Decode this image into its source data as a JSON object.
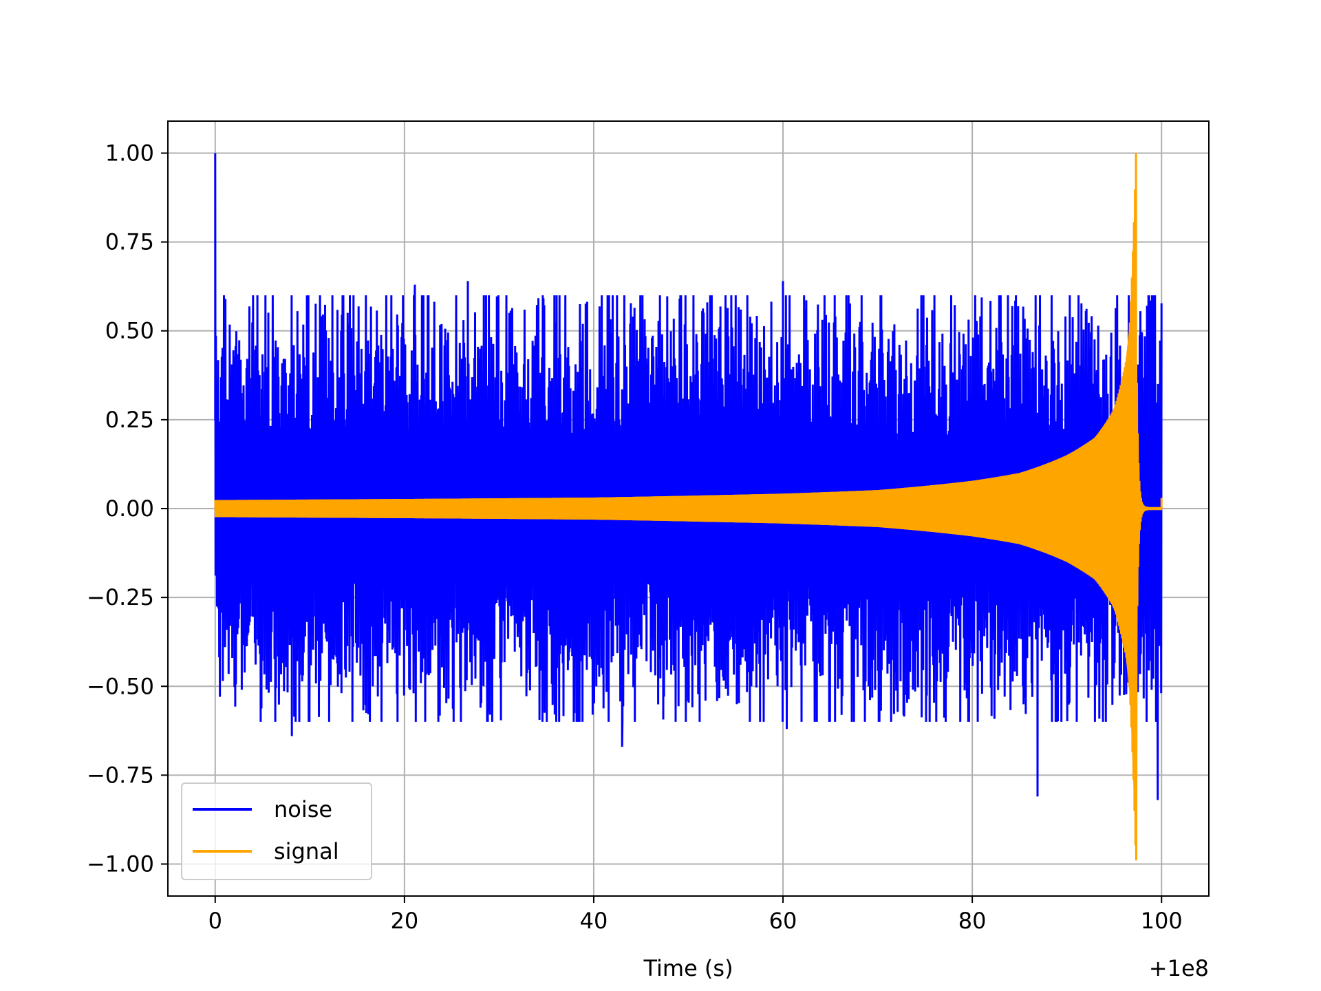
{
  "chart_data": {
    "type": "line",
    "title": "",
    "xlabel": "Time (s)",
    "ylabel": "",
    "x_offset_label": "+1e8",
    "xlim": [
      -5,
      105
    ],
    "ylim": [
      -1.09,
      1.09
    ],
    "xticks": [
      0,
      20,
      40,
      60,
      80,
      100
    ],
    "xtick_labels": [
      "0",
      "20",
      "40",
      "60",
      "80",
      "100"
    ],
    "yticks": [
      1.0,
      0.75,
      0.5,
      0.25,
      0.0,
      -0.25,
      -0.5,
      -0.75,
      -1.0
    ],
    "ytick_labels": [
      "1.00",
      "0.75",
      "0.50",
      "0.25",
      "0.00",
      "−0.25",
      "−0.50",
      "−0.75",
      "−1.00"
    ],
    "grid": true,
    "legend_position": "lower-left",
    "series": [
      {
        "name": "noise",
        "color": "#0000ff",
        "x_range": [
          0,
          100
        ],
        "typical_band": [
          -0.4,
          0.4
        ],
        "peaks": [
          {
            "x": 0.0,
            "y": 1.0
          },
          {
            "x": 8.1,
            "y": -0.64
          },
          {
            "x": 21.1,
            "y": 0.63
          },
          {
            "x": 26.7,
            "y": 0.64
          },
          {
            "x": 43.0,
            "y": -0.67
          },
          {
            "x": 52.0,
            "y": 0.58
          },
          {
            "x": 60.0,
            "y": 0.64
          },
          {
            "x": 60.4,
            "y": -0.62
          },
          {
            "x": 86.9,
            "y": -0.81
          },
          {
            "x": 99.6,
            "y": -0.82
          }
        ]
      },
      {
        "name": "signal",
        "color": "#ffa500",
        "x_range": [
          0,
          100
        ],
        "envelope": [
          {
            "x": 0,
            "y": 0.024
          },
          {
            "x": 20,
            "y": 0.027
          },
          {
            "x": 40,
            "y": 0.031
          },
          {
            "x": 60,
            "y": 0.042
          },
          {
            "x": 70,
            "y": 0.052
          },
          {
            "x": 80,
            "y": 0.078
          },
          {
            "x": 85,
            "y": 0.1
          },
          {
            "x": 90,
            "y": 0.15
          },
          {
            "x": 93,
            "y": 0.2
          },
          {
            "x": 95,
            "y": 0.28
          },
          {
            "x": 96.5,
            "y": 0.45
          },
          {
            "x": 97.3,
            "y": 1.0
          }
        ],
        "ringdown_x": [
          97.4,
          100
        ],
        "tail_value": 0.03
      }
    ]
  }
}
